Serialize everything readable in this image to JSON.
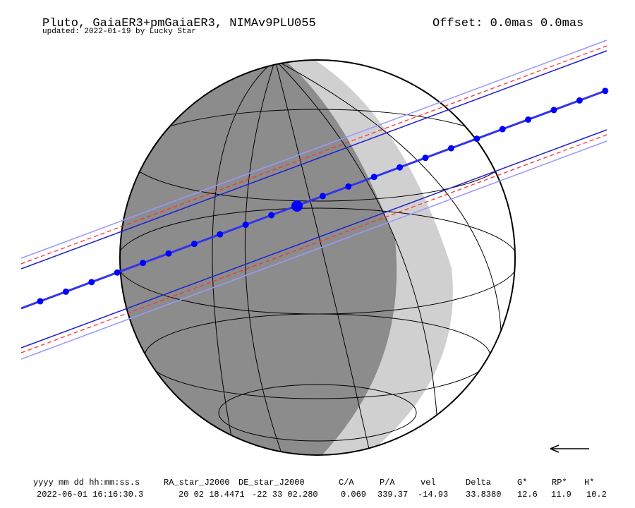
{
  "header": {
    "title": "Pluto, GaiaER3+pmGaiaER3, NIMAv9PLU055",
    "updated": "updated: 2022-01-19 by Lucky Star",
    "offset": "Offset: 0.0mas 0.0mas"
  },
  "table": {
    "columns": [
      "yyyy mm dd hh:mm:ss.s",
      "RA_star_J2000",
      "DE_star_J2000",
      "C/A",
      "P/A",
      "vel",
      "Delta",
      "G*",
      "RP*",
      "H*"
    ],
    "rows": [
      [
        "2022-06-01 16:16:30.3",
        "20 02 18.4471",
        "-22 33 02.280",
        "0.069",
        "339.37",
        "-14.93",
        "33.8380",
        "12.6",
        "11.9",
        "10.2"
      ]
    ]
  }
}
